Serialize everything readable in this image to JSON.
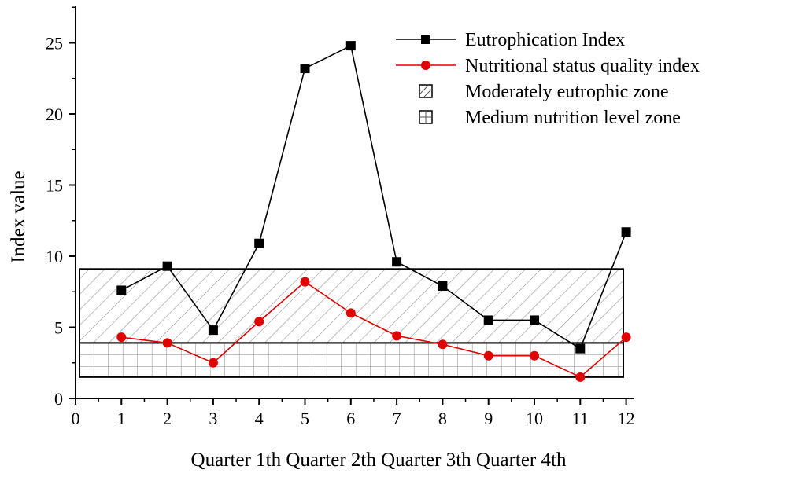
{
  "chart_data": {
    "type": "line",
    "xlabel": "Quarter 1th Quarter 2th Quarter 3th Quarter 4th",
    "ylabel": "Index value",
    "xlim": [
      0,
      12
    ],
    "ylim": [
      0,
      27.5
    ],
    "x_ticks": [
      "0",
      "1",
      "2",
      "3",
      "4",
      "5",
      "6",
      "7",
      "8",
      "9",
      "10",
      "11",
      "12"
    ],
    "y_ticks": [
      "0",
      "5",
      "10",
      "15",
      "20",
      "25"
    ],
    "x": [
      1,
      2,
      3,
      4,
      5,
      6,
      7,
      8,
      9,
      10,
      11,
      12
    ],
    "series": [
      {
        "name": "Eutrophication Index",
        "color": "#000000",
        "marker": "square",
        "values": [
          7.6,
          9.3,
          4.8,
          10.9,
          23.2,
          24.8,
          9.6,
          7.9,
          5.5,
          5.5,
          3.5,
          11.7
        ]
      },
      {
        "name": "Nutritional status quality index",
        "color": "#e00000",
        "marker": "circle",
        "values": [
          4.3,
          3.9,
          2.5,
          5.4,
          8.2,
          6.0,
          4.4,
          3.8,
          3.0,
          3.0,
          1.5,
          4.3
        ]
      }
    ],
    "zones": [
      {
        "name": "Moderately eutrophic zone",
        "pattern": "diagonal-hatch",
        "y_range": [
          3.9,
          9.1
        ]
      },
      {
        "name": "Medium nutrition level zone",
        "pattern": "grid",
        "y_range": [
          1.5,
          3.9
        ]
      }
    ],
    "legend_position": "top-right",
    "grid": false
  }
}
